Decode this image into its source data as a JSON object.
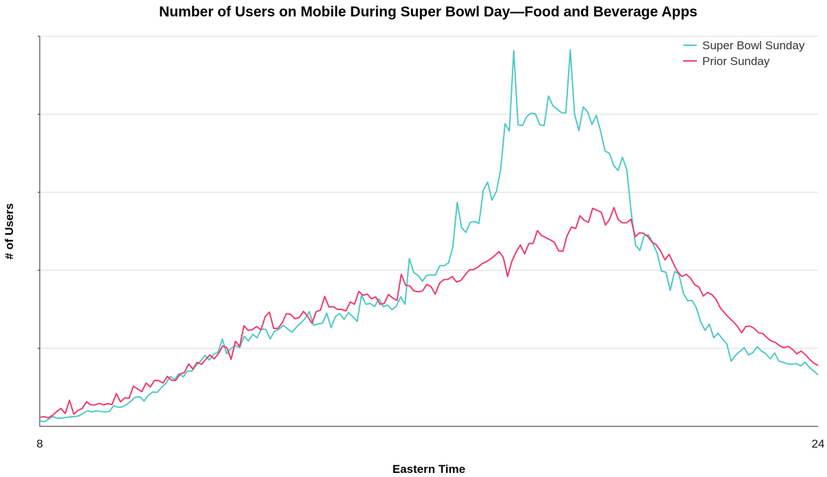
{
  "colors": {
    "super_bowl": "#4ec9c6",
    "prior": "#ee3a6a",
    "grid": "#d9d9d9",
    "axis": "#222222"
  },
  "chart_data": {
    "type": "line",
    "title": "Number of Users on Mobile During Super Bowl Day—Food and Beverage Apps",
    "xlabel": "Eastern Time",
    "ylabel": "# of Users",
    "xlim": [
      8,
      24
    ],
    "x_ticks": [
      "8",
      "24"
    ],
    "ylim": [
      0,
      100
    ],
    "grid": "horizontal",
    "legend_position": "top-right",
    "series": [
      {
        "name": "Super Bowl Sunday",
        "color": "#4ec9c6",
        "values": [
          1.4,
          1.2,
          1.8,
          2.5,
          2.1,
          2.1,
          2.3,
          2.4,
          2.5,
          2.7,
          3.4,
          4.0,
          3.7,
          4.0,
          3.8,
          3.7,
          3.8,
          5.3,
          4.9,
          5.0,
          5.6,
          6.5,
          7.5,
          7.6,
          6.5,
          8.0,
          8.8,
          8.7,
          10.0,
          11.0,
          12.8,
          12.0,
          13.5,
          12.7,
          14.2,
          14.2,
          15.7,
          16.7,
          18.2,
          17.0,
          18.5,
          19.0,
          22.4,
          18.6,
          20.0,
          20.7,
          20.2,
          23.1,
          21.9,
          23.6,
          22.7,
          25.0,
          24.8,
          22.4,
          24.4,
          24.9,
          25.9,
          25.0,
          24.1,
          25.4,
          26.5,
          27.6,
          29.4,
          25.9,
          26.3,
          26.4,
          29.0,
          25.3,
          28.1,
          28.9,
          27.4,
          29.2,
          28.1,
          26.9,
          33.6,
          31.3,
          31.5,
          30.7,
          32.7,
          30.7,
          31.1,
          29.9,
          30.8,
          33.2,
          31.3,
          43.0,
          39.5,
          38.7,
          37.2,
          38.7,
          38.8,
          38.8,
          41.2,
          41.2,
          41.9,
          45.9,
          57.4,
          51.0,
          49.7,
          52.3,
          52.5,
          52.0,
          60.5,
          62.6,
          58.0,
          60.2,
          65.8,
          77.6,
          75.7,
          96.3,
          77.3,
          77.1,
          79.4,
          80.3,
          80.1,
          77.3,
          77.1,
          84.7,
          82.2,
          81.3,
          80.4,
          80.4,
          96.5,
          80.0,
          75.8,
          81.9,
          80.6,
          77.4,
          79.7,
          75.6,
          70.6,
          70.0,
          66.9,
          65.6,
          69.0,
          65.8,
          55.1,
          46.5,
          45.1,
          48.9,
          49.1,
          47.0,
          44.3,
          39.8,
          39.5,
          34.9,
          39.7,
          39.0,
          34.2,
          32.2,
          32.3,
          30.4,
          26.8,
          24.6,
          26.2,
          22.7,
          23.9,
          22.4,
          21.2,
          16.7,
          18.2,
          19.2,
          20.2,
          18.3,
          18.9,
          20.4,
          19.3,
          18.6,
          17.3,
          18.8,
          16.7,
          16.4,
          16.0,
          15.9,
          16.1,
          15.5,
          16.5,
          15.1,
          14.2,
          13.2
        ]
      },
      {
        "name": "Prior Sunday",
        "color": "#ee3a6a",
        "values": [
          2.3,
          2.5,
          2.2,
          2.8,
          3.8,
          4.6,
          3.3,
          6.7,
          3.1,
          4.1,
          4.6,
          6.3,
          5.5,
          5.5,
          5.9,
          5.5,
          5.8,
          5.6,
          8.4,
          6.3,
          7.3,
          7.2,
          10.3,
          9.6,
          8.9,
          11.1,
          10.1,
          11.8,
          11.7,
          11.1,
          12.8,
          11.8,
          11.8,
          13.4,
          13.8,
          16.0,
          14.7,
          16.4,
          15.9,
          17.1,
          18.3,
          17.3,
          18.6,
          20.6,
          20.2,
          17.2,
          21.8,
          20.5,
          25.8,
          24.6,
          24.8,
          25.6,
          24.7,
          28.1,
          29.3,
          25.1,
          25.1,
          26.5,
          28.9,
          28.7,
          27.6,
          27.9,
          29.5,
          28.2,
          26.4,
          29.4,
          29.8,
          33.3,
          30.6,
          30.7,
          30.0,
          30.0,
          29.6,
          31.9,
          31.3,
          34.6,
          33.6,
          33.9,
          32.7,
          33.2,
          31.3,
          31.5,
          33.8,
          32.9,
          32.3,
          39.0,
          36.2,
          36.0,
          34.7,
          34.5,
          34.7,
          36.4,
          35.8,
          33.9,
          36.7,
          37.6,
          37.7,
          38.4,
          37.0,
          37.4,
          38.8,
          40.1,
          40.2,
          40.8,
          41.7,
          42.2,
          42.9,
          43.8,
          44.8,
          43.3,
          38.4,
          42.3,
          44.7,
          46.5,
          44.2,
          46.9,
          46.9,
          50.2,
          48.9,
          48.4,
          47.8,
          47.2,
          45.0,
          44.9,
          48.9,
          51.1,
          50.7,
          54.0,
          52.8,
          52.3,
          55.9,
          55.4,
          54.9,
          51.6,
          53.1,
          56.1,
          53.0,
          52.2,
          52.2,
          53.1,
          48.6,
          49.6,
          49.5,
          48.6,
          47.2,
          46.5,
          44.9,
          42.7,
          44.1,
          41.7,
          39.6,
          38.4,
          39.0,
          38.0,
          36.3,
          35.7,
          33.4,
          34.3,
          33.8,
          32.6,
          30.4,
          29.1,
          27.9,
          26.9,
          25.7,
          24.0,
          25.6,
          25.7,
          25.1,
          24.0,
          23.8,
          22.7,
          21.9,
          21.5,
          20.6,
          20.2,
          20.5,
          19.7,
          18.6,
          19.3,
          18.4,
          17.2,
          16.2,
          15.6
        ]
      }
    ]
  }
}
